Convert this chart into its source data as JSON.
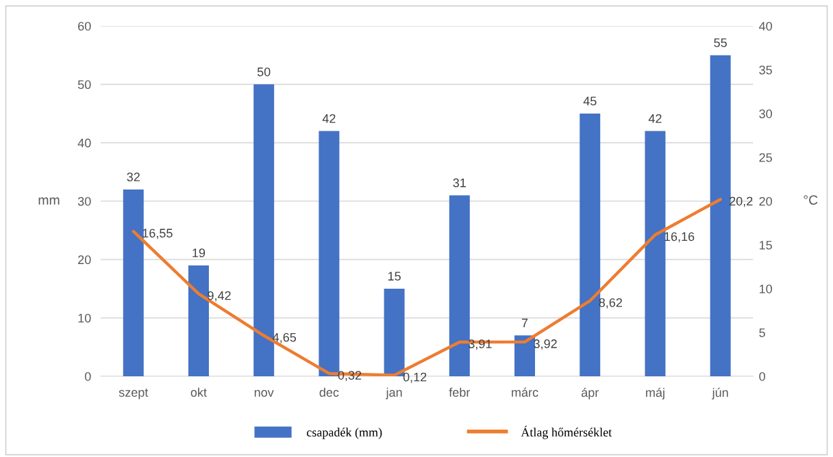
{
  "chart_data": {
    "type": "bar",
    "categories": [
      "szept",
      "okt",
      "nov",
      "dec",
      "jan",
      "febr",
      "márc",
      "ápr",
      "máj",
      "jún"
    ],
    "series": [
      {
        "name": "csapadék (mm)",
        "color": "#4472c4",
        "values": [
          32,
          19,
          50,
          42,
          15,
          31,
          7,
          45,
          42,
          55
        ],
        "value_labels": [
          "32",
          "19",
          "50",
          "42",
          "15",
          "31",
          "7",
          "45",
          "42",
          "55"
        ]
      },
      {
        "name": "Átlag hőmérséklet",
        "type": "line",
        "axis": "y2",
        "color": "#ed7d31",
        "values": [
          16.55,
          9.42,
          4.65,
          0.32,
          0.12,
          3.91,
          3.92,
          8.62,
          16.16,
          20.2
        ],
        "value_labels": [
          "16,55",
          "9,42",
          "4,65",
          "0,32",
          "0,12",
          "3,91",
          "3,92",
          "8,62",
          "16,16",
          "20,2"
        ]
      }
    ],
    "ylabel": "mm",
    "y2label": "°C",
    "ylim": [
      0,
      60
    ],
    "yticks": [
      0,
      10,
      20,
      30,
      40,
      50,
      60
    ],
    "y2lim": [
      0,
      40
    ],
    "y2ticks": [
      0,
      5,
      10,
      15,
      20,
      25,
      30,
      35,
      40
    ],
    "grid": "y",
    "legend": "bottom",
    "marker": "none",
    "line_style": "solid"
  }
}
